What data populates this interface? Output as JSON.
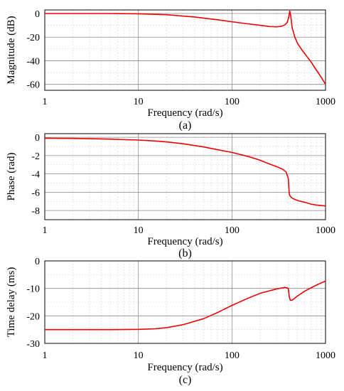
{
  "colors": {
    "series": "#ee0000",
    "major_grid": "#8a8a8a",
    "minor_grid": "#d2d2d2",
    "frame": "#000000"
  },
  "chart_data": [
    {
      "type": "line",
      "panel_label": "(a)",
      "xlabel": "Frequency (rad/s)",
      "ylabel": "Magnitude (dB)",
      "x_scale": "log",
      "xlim": [
        1,
        1000
      ],
      "ylim": [
        -65,
        3
      ],
      "x_ticks": [
        1,
        10,
        100,
        1000
      ],
      "x_tick_labels": [
        "1",
        "10",
        "100",
        "1000"
      ],
      "y_ticks": [
        0,
        -20,
        -40,
        -60
      ],
      "y_tick_labels": [
        "0",
        "-20",
        "-40",
        "-60"
      ],
      "grid": true,
      "series": [
        {
          "x": [
            1,
            2,
            5,
            10,
            20,
            40,
            70,
            100,
            150,
            200,
            250,
            300,
            340,
            370,
            390,
            405,
            415,
            425,
            440,
            470,
            500,
            550,
            600,
            700,
            800,
            900,
            1000
          ],
          "y": [
            0,
            0,
            0,
            -0.3,
            -1,
            -3,
            -5.3,
            -7,
            -8.8,
            -10,
            -11,
            -11.3,
            -10.8,
            -9.5,
            -7.5,
            -3,
            2,
            -2,
            -12,
            -20,
            -25,
            -30,
            -34,
            -41,
            -48,
            -54,
            -60
          ]
        }
      ]
    },
    {
      "type": "line",
      "panel_label": "(b)",
      "xlabel": "Frequency (rad/s)",
      "ylabel": "Phase (rad)",
      "x_scale": "log",
      "xlim": [
        1,
        1000
      ],
      "ylim": [
        -9,
        0.4
      ],
      "x_ticks": [
        1,
        10,
        100,
        1000
      ],
      "x_tick_labels": [
        "1",
        "10",
        "100",
        "1000"
      ],
      "y_ticks": [
        0,
        -2,
        -4,
        -6,
        -8
      ],
      "y_tick_labels": [
        "0",
        "-2",
        "-4",
        "-6",
        "-8"
      ],
      "grid": true,
      "series": [
        {
          "x": [
            1,
            2,
            3,
            5,
            7,
            10,
            15,
            20,
            30,
            50,
            70,
            100,
            150,
            200,
            250,
            300,
            350,
            380,
            400,
            410,
            420,
            430,
            450,
            500,
            600,
            700,
            800,
            1000
          ],
          "y": [
            -0.1,
            -0.12,
            -0.15,
            -0.2,
            -0.25,
            -0.3,
            -0.4,
            -0.5,
            -0.7,
            -1.05,
            -1.35,
            -1.65,
            -2.1,
            -2.5,
            -2.9,
            -3.2,
            -3.5,
            -3.8,
            -4.5,
            -6.2,
            -6.45,
            -6.55,
            -6.7,
            -6.9,
            -7.1,
            -7.3,
            -7.4,
            -7.5
          ]
        }
      ]
    },
    {
      "type": "line",
      "panel_label": "(c)",
      "xlabel": "Frequency (rad/s)",
      "ylabel": "Time delay (ms)",
      "x_scale": "log",
      "xlim": [
        1,
        1000
      ],
      "ylim": [
        -30,
        0
      ],
      "x_ticks": [
        1,
        10,
        100,
        1000
      ],
      "x_tick_labels": [
        "1",
        "10",
        "100",
        "1000"
      ],
      "y_ticks": [
        0,
        -10,
        -20,
        -30
      ],
      "y_tick_labels": [
        "0",
        "-10",
        "-20",
        "-30"
      ],
      "grid": true,
      "series": [
        {
          "x": [
            1,
            2,
            5,
            10,
            15,
            20,
            30,
            50,
            70,
            100,
            150,
            200,
            300,
            370,
            400,
            410,
            420,
            440,
            470,
            500,
            600,
            700,
            800,
            900,
            1000
          ],
          "y": [
            -25,
            -25,
            -25,
            -24.9,
            -24.7,
            -24.3,
            -23.2,
            -21,
            -18.8,
            -16.2,
            -13.5,
            -11.8,
            -10.2,
            -9.6,
            -10,
            -13,
            -14.3,
            -14.3,
            -13.5,
            -12.8,
            -11,
            -9.8,
            -8.8,
            -8,
            -7.3
          ]
        }
      ]
    }
  ]
}
